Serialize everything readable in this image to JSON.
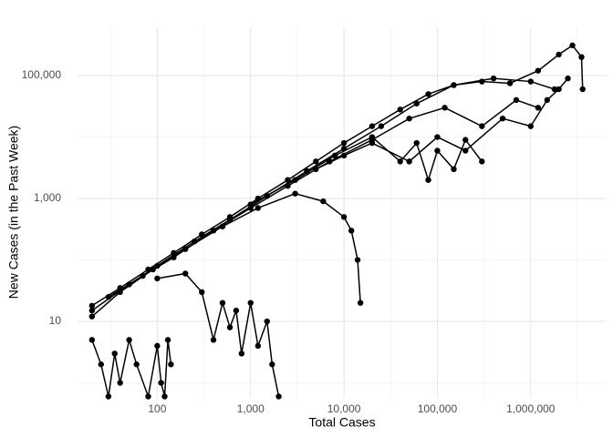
{
  "chart_data": {
    "type": "line",
    "xlabel": "Total Cases",
    "ylabel": "New Cases (in the Past Week)",
    "xscale": "log",
    "yscale": "log",
    "grid": true,
    "marker": "circle",
    "xlim": [
      14,
      6500000
    ],
    "ylim": [
      0.57,
      610000
    ],
    "xticks": [
      100,
      {
        "value": 1000,
        "label": "1,000"
      },
      {
        "value": 10000,
        "label": "10,000"
      },
      {
        "value": 100000,
        "label": "100,000"
      },
      {
        "value": 1000000,
        "label": "1,000,000"
      }
    ],
    "yticks": [
      10,
      {
        "value": 1000,
        "label": "1,000"
      },
      {
        "value": 100000,
        "label": "100,000"
      }
    ],
    "x_minor_ticks": [
      31.6,
      316,
      3160,
      31600,
      316000,
      3160000
    ],
    "y_minor_ticks": [
      1,
      100,
      10000
    ],
    "series": [
      {
        "color": "#000000",
        "x": [
          20,
          40,
          80,
          150,
          300,
          600,
          1200,
          2500,
          5000,
          10000,
          20000,
          40000,
          80000,
          150000,
          300000,
          600000,
          1200000,
          2000000,
          2800000,
          3500000,
          3600000
        ],
        "values": [
          18,
          35,
          70,
          130,
          260,
          500,
          1000,
          2000,
          4000,
          8000,
          15000,
          28000,
          50000,
          70000,
          80000,
          75000,
          120000,
          220000,
          310000,
          200000,
          60000
        ]
      },
      {
        "color": "#000000",
        "x": [
          20,
          50,
          100,
          250,
          600,
          1500,
          4000,
          10000,
          25000,
          60000,
          150000,
          400000,
          1000000,
          1800000
        ],
        "values": [
          15,
          40,
          80,
          200,
          450,
          1100,
          2800,
          6500,
          15000,
          35000,
          70000,
          90000,
          80000,
          60000
        ]
      },
      {
        "color": "#000000",
        "x": [
          30,
          70,
          150,
          400,
          1000,
          2500,
          7000,
          20000,
          50000,
          120000,
          300000,
          700000,
          1200000
        ],
        "values": [
          25,
          55,
          110,
          300,
          700,
          1600,
          4000,
          9000,
          20000,
          30000,
          15000,
          40000,
          30000
        ]
      },
      {
        "color": "#000000",
        "x": [
          20,
          40,
          90,
          200,
          500,
          1200,
          3000,
          6000,
          10000,
          12000,
          14000,
          15000
        ],
        "values": [
          12,
          30,
          70,
          150,
          350,
          700,
          1200,
          900,
          500,
          300,
          100,
          20
        ]
      },
      {
        "color": "#000000",
        "x": [
          20,
          25,
          30,
          35,
          40,
          50,
          60,
          80,
          100,
          110,
          120,
          130,
          140
        ],
        "values": [
          5,
          2,
          0.6,
          3,
          1,
          5,
          2,
          0.6,
          4,
          1,
          0.6,
          5,
          2
        ]
      },
      {
        "color": "#000000",
        "x": [
          100,
          200,
          300,
          400,
          500,
          600,
          700,
          800,
          1000,
          1200,
          1500,
          1700,
          2000
        ],
        "values": [
          50,
          60,
          30,
          5,
          20,
          8,
          15,
          3,
          20,
          4,
          10,
          2,
          0.6
        ]
      },
      {
        "color": "#000000",
        "x": [
          1000,
          3000,
          8000,
          20000,
          40000,
          60000,
          80000,
          100000,
          150000,
          200000,
          300000
        ],
        "values": [
          800,
          2000,
          5000,
          10000,
          4000,
          8000,
          2000,
          6000,
          3000,
          9000,
          4000
        ]
      },
      {
        "color": "#000000",
        "x": [
          5000,
          10000,
          20000,
          50000,
          100000,
          200000,
          500000,
          1000000,
          1500000,
          2000000,
          2500000
        ],
        "values": [
          3000,
          5000,
          8000,
          4000,
          10000,
          6000,
          20000,
          15000,
          40000,
          60000,
          90000
        ]
      }
    ]
  }
}
